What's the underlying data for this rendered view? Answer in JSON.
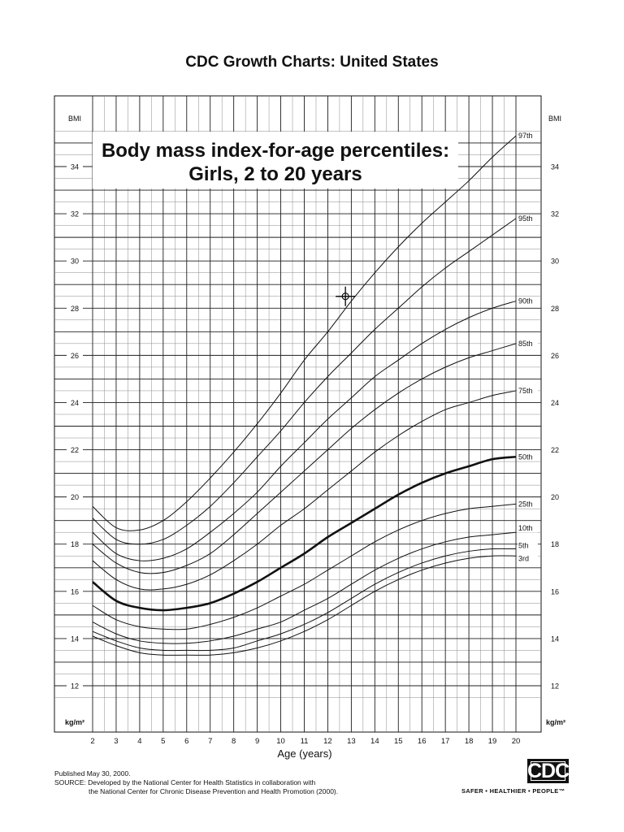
{
  "page_title": "CDC Growth Charts: United States",
  "chart_data": {
    "type": "line",
    "title_line1": "Body mass index-for-age percentiles:",
    "title_line2": "Girls, 2 to 20 years",
    "xlabel": "Age (years)",
    "ylabel_top": "BMI",
    "ylabel_bottom": "kg/m²",
    "xlim": [
      2,
      20
    ],
    "ylim": [
      12,
      35
    ],
    "x_ticks": [
      2,
      3,
      4,
      5,
      6,
      7,
      8,
      9,
      10,
      11,
      12,
      13,
      14,
      15,
      16,
      17,
      18,
      19,
      20
    ],
    "y_ticks": [
      12,
      14,
      16,
      18,
      20,
      22,
      24,
      26,
      28,
      30,
      32,
      34
    ],
    "grid": true,
    "x": [
      2,
      3,
      4,
      5,
      6,
      7,
      8,
      9,
      10,
      11,
      12,
      13,
      14,
      15,
      16,
      17,
      18,
      19,
      20
    ],
    "series": [
      {
        "name": "3rd",
        "values": [
          14.1,
          13.7,
          13.4,
          13.3,
          13.3,
          13.3,
          13.4,
          13.6,
          13.9,
          14.3,
          14.8,
          15.4,
          16.0,
          16.5,
          16.9,
          17.2,
          17.4,
          17.5,
          17.5
        ]
      },
      {
        "name": "5th",
        "values": [
          14.3,
          13.9,
          13.6,
          13.5,
          13.5,
          13.5,
          13.6,
          13.9,
          14.2,
          14.6,
          15.1,
          15.7,
          16.3,
          16.8,
          17.2,
          17.5,
          17.7,
          17.8,
          17.8
        ]
      },
      {
        "name": "10th",
        "values": [
          14.7,
          14.2,
          13.9,
          13.8,
          13.8,
          13.9,
          14.1,
          14.4,
          14.7,
          15.2,
          15.7,
          16.3,
          16.9,
          17.4,
          17.8,
          18.1,
          18.3,
          18.4,
          18.5
        ]
      },
      {
        "name": "25th",
        "values": [
          15.4,
          14.8,
          14.5,
          14.4,
          14.4,
          14.6,
          14.9,
          15.3,
          15.8,
          16.3,
          16.9,
          17.5,
          18.1,
          18.6,
          19.0,
          19.3,
          19.5,
          19.6,
          19.7
        ]
      },
      {
        "name": "50th",
        "values": [
          16.4,
          15.6,
          15.3,
          15.2,
          15.3,
          15.5,
          15.9,
          16.4,
          17.0,
          17.6,
          18.3,
          18.9,
          19.5,
          20.1,
          20.6,
          21.0,
          21.3,
          21.6,
          21.7
        ]
      },
      {
        "name": "75th",
        "values": [
          17.3,
          16.5,
          16.1,
          16.1,
          16.3,
          16.7,
          17.3,
          18.0,
          18.8,
          19.5,
          20.3,
          21.1,
          21.9,
          22.6,
          23.2,
          23.7,
          24.0,
          24.3,
          24.5
        ]
      },
      {
        "name": "85th",
        "values": [
          18.0,
          17.2,
          16.8,
          16.8,
          17.1,
          17.6,
          18.4,
          19.3,
          20.2,
          21.1,
          22.0,
          22.9,
          23.7,
          24.4,
          25.0,
          25.5,
          25.9,
          26.2,
          26.5
        ]
      },
      {
        "name": "90th",
        "values": [
          18.5,
          17.6,
          17.3,
          17.4,
          17.8,
          18.5,
          19.3,
          20.2,
          21.3,
          22.3,
          23.3,
          24.2,
          25.1,
          25.8,
          26.5,
          27.1,
          27.6,
          28.0,
          28.3
        ]
      },
      {
        "name": "95th",
        "values": [
          19.1,
          18.2,
          18.0,
          18.2,
          18.8,
          19.6,
          20.6,
          21.7,
          22.8,
          24.0,
          25.1,
          26.1,
          27.1,
          28.0,
          28.9,
          29.7,
          30.4,
          31.1,
          31.8
        ]
      },
      {
        "name": "97th",
        "values": [
          19.6,
          18.7,
          18.6,
          19.0,
          19.8,
          20.8,
          21.9,
          23.1,
          24.4,
          25.8,
          27.0,
          28.3,
          29.5,
          30.6,
          31.6,
          32.5,
          33.4,
          34.4,
          35.3
        ]
      }
    ],
    "annotations": [
      {
        "type": "crosshair-marker",
        "x": 12.75,
        "y": 28.5
      }
    ]
  },
  "footer": {
    "line1": "Published May 30, 2000.",
    "line2": "SOURCE: Developed by the National Center for Health Statistics in collaboration with",
    "line3": "the National Center for Chronic Disease Prevention and Health Promotion (2000).",
    "logo_text": "CDC",
    "tagline": "SAFER • HEALTHIER • PEOPLE™"
  }
}
